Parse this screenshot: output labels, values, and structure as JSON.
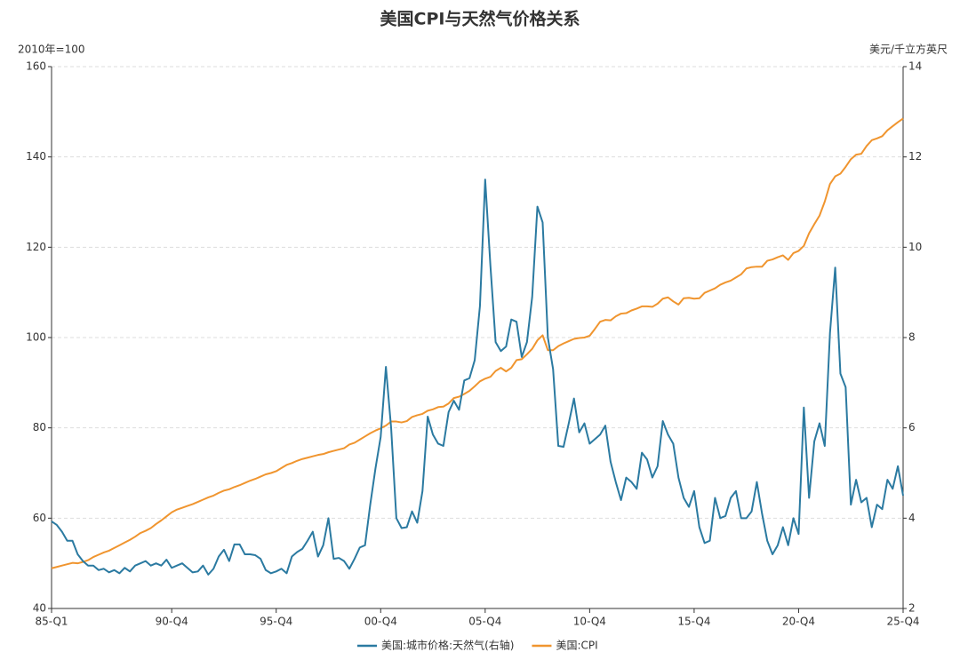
{
  "chart_data": {
    "type": "line",
    "title": "美国CPI与天然气价格关系",
    "y_label": "2010年=100",
    "y2_label": "美元/千立方英尺",
    "categories": [
      "85-Q1",
      null,
      null,
      null,
      null,
      null,
      null,
      null,
      null,
      null,
      null,
      null,
      null,
      null,
      null,
      null,
      null,
      null,
      null,
      null,
      null,
      null,
      null,
      "90-Q4",
      null,
      null,
      null,
      null,
      null,
      null,
      null,
      null,
      null,
      null,
      null,
      null,
      null,
      null,
      null,
      null,
      null,
      null,
      null,
      "95-Q4",
      null,
      null,
      null,
      null,
      null,
      null,
      null,
      null,
      null,
      null,
      null,
      null,
      null,
      null,
      null,
      null,
      null,
      null,
      null,
      "00-Q4",
      null,
      null,
      null,
      null,
      null,
      null,
      null,
      null,
      null,
      null,
      null,
      null,
      null,
      null,
      null,
      null,
      null,
      null,
      null,
      "05-Q4",
      null,
      null,
      null,
      null,
      null,
      null,
      null,
      null,
      null,
      null,
      null,
      null,
      null,
      null,
      null,
      null,
      null,
      null,
      null,
      "10-Q4",
      null,
      null,
      null,
      null,
      null,
      null,
      null,
      null,
      null,
      null,
      null,
      null,
      null,
      null,
      null,
      null,
      null,
      null,
      null,
      "15-Q4",
      null,
      null,
      null,
      null,
      null,
      null,
      null,
      null,
      null,
      null,
      null,
      null,
      null,
      null,
      null,
      null,
      null,
      null,
      null,
      "20-Q4",
      null,
      null,
      null,
      null,
      null,
      null,
      null,
      null,
      null,
      null,
      null,
      null,
      null,
      null,
      null,
      null,
      null,
      null,
      null,
      "25-Q4"
    ],
    "series": [
      {
        "name": "美国:城市价格:天然气(右轴)",
        "color": "#2b7aa1",
        "axis": "y2",
        "values": [
          3.93,
          3.85,
          3.7,
          3.5,
          3.5,
          3.2,
          3.05,
          2.95,
          2.95,
          2.85,
          2.88,
          2.8,
          2.85,
          2.78,
          2.9,
          2.82,
          2.95,
          3.0,
          3.05,
          2.95,
          3.0,
          2.95,
          3.08,
          2.9,
          2.95,
          3.0,
          2.9,
          2.8,
          2.82,
          2.95,
          2.75,
          2.88,
          3.15,
          3.3,
          3.05,
          3.42,
          3.42,
          3.2,
          3.2,
          3.18,
          3.1,
          2.85,
          2.78,
          2.82,
          2.88,
          2.78,
          3.15,
          3.25,
          3.32,
          3.5,
          3.7,
          3.15,
          3.4,
          4.0,
          3.1,
          3.12,
          3.05,
          2.88,
          3.1,
          3.35,
          3.4,
          4.3,
          5.1,
          5.8,
          7.35,
          6.0,
          4.0,
          3.78,
          3.8,
          4.15,
          3.9,
          4.6,
          6.25,
          5.85,
          5.65,
          5.6,
          6.35,
          6.6,
          6.4,
          7.05,
          7.1,
          7.5,
          8.7,
          11.5,
          9.6,
          7.9,
          7.7,
          7.8,
          8.4,
          8.35,
          7.57,
          7.9,
          8.9,
          10.9,
          10.55,
          8.0,
          7.3,
          5.6,
          5.58,
          6.1,
          6.65,
          5.9,
          6.1,
          5.65,
          5.75,
          5.85,
          6.05,
          5.25,
          4.8,
          4.4,
          4.9,
          4.8,
          4.65,
          5.45,
          5.3,
          4.9,
          5.15,
          6.15,
          5.85,
          5.65,
          4.9,
          4.45,
          4.25,
          4.6,
          3.8,
          3.45,
          3.5,
          4.45,
          4.0,
          4.05,
          4.45,
          4.6,
          4.0,
          4.0,
          4.15,
          4.8,
          4.1,
          3.5,
          3.2,
          3.4,
          3.8,
          3.4,
          4.0,
          3.65,
          6.45,
          4.45,
          5.7,
          6.1,
          5.6,
          8.1,
          9.55,
          7.2,
          6.9,
          4.3,
          4.85,
          4.35,
          4.45,
          3.8,
          4.3,
          4.2,
          4.85,
          4.65,
          5.15,
          4.5
        ]
      },
      {
        "name": "美国:CPI",
        "color": "#f0952f",
        "values": [
          48.9,
          49.2,
          49.5,
          49.8,
          50.1,
          50.0,
          50.3,
          50.7,
          51.4,
          51.9,
          52.4,
          52.8,
          53.4,
          54.0,
          54.6,
          55.2,
          55.9,
          56.7,
          57.2,
          57.8,
          58.7,
          59.5,
          60.4,
          61.3,
          61.9,
          62.3,
          62.7,
          63.1,
          63.6,
          64.1,
          64.6,
          65.0,
          65.6,
          66.1,
          66.4,
          66.9,
          67.3,
          67.8,
          68.3,
          68.7,
          69.2,
          69.7,
          70.0,
          70.4,
          71.1,
          71.8,
          72.2,
          72.7,
          73.1,
          73.4,
          73.7,
          74.0,
          74.2,
          74.6,
          74.9,
          75.2,
          75.5,
          76.3,
          76.7,
          77.4,
          78.1,
          78.8,
          79.4,
          79.9,
          80.5,
          81.4,
          81.4,
          81.2,
          81.5,
          82.4,
          82.8,
          83.1,
          83.8,
          84.1,
          84.6,
          84.7,
          85.4,
          86.6,
          86.9,
          87.5,
          88.2,
          89.2,
          90.3,
          90.9,
          91.3,
          92.6,
          93.3,
          92.5,
          93.3,
          95.0,
          95.2,
          96.3,
          97.5,
          99.4,
          100.5,
          97.2,
          97.2,
          98.1,
          98.7,
          99.2,
          99.7,
          99.9,
          100.0,
          100.4,
          101.9,
          103.5,
          103.9,
          103.8,
          104.7,
          105.3,
          105.4,
          106.0,
          106.4,
          106.9,
          106.9,
          106.8,
          107.5,
          108.6,
          108.9,
          108.0,
          107.3,
          108.7,
          108.8,
          108.6,
          108.7,
          109.9,
          110.4,
          110.9,
          111.7,
          112.2,
          112.6,
          113.3,
          114.0,
          115.3,
          115.6,
          115.7,
          115.7,
          117.0,
          117.3,
          117.8,
          118.2,
          117.2,
          118.7,
          119.2,
          120.3,
          123.1,
          125.1,
          127.0,
          130.1,
          134.0,
          135.7,
          136.3,
          137.8,
          139.5,
          140.5,
          140.7,
          142.4,
          143.7,
          144.1,
          144.6,
          145.9,
          146.8,
          147.7,
          148.5
        ]
      }
    ],
    "ylim": [
      40,
      160
    ],
    "yticks": [
      40,
      60,
      80,
      100,
      120,
      140,
      160
    ],
    "y2lim": [
      2,
      14
    ],
    "y2ticks": [
      2,
      4,
      6,
      8,
      10,
      12,
      14
    ],
    "grid": true,
    "legend": "bottom"
  }
}
